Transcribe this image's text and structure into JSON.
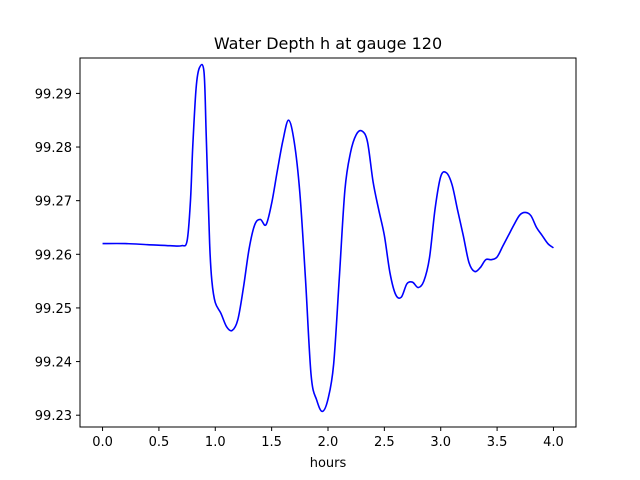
{
  "chart_data": {
    "type": "line",
    "title": "Water Depth h at gauge 120",
    "xlabel": "hours",
    "ylabel": "",
    "xlim": [
      -0.2,
      4.2
    ],
    "ylim": [
      99.2278,
      99.2966
    ],
    "xticks": [
      0.0,
      0.5,
      1.0,
      1.5,
      2.0,
      2.5,
      3.0,
      3.5,
      4.0
    ],
    "xtick_labels": [
      "0.0",
      "0.5",
      "1.0",
      "1.5",
      "2.0",
      "2.5",
      "3.0",
      "3.5",
      "4.0"
    ],
    "yticks": [
      99.23,
      99.24,
      99.25,
      99.26,
      99.27,
      99.28,
      99.29
    ],
    "ytick_labels": [
      "99.23",
      "99.24",
      "99.25",
      "99.26",
      "99.27",
      "99.28",
      "99.29"
    ],
    "grid": false,
    "series": [
      {
        "color": "#0000ff",
        "x": [
          0.0,
          0.2,
          0.4,
          0.6,
          0.7,
          0.75,
          0.78,
          0.8,
          0.83,
          0.86,
          0.9,
          0.92,
          0.95,
          0.97,
          1.0,
          1.05,
          1.1,
          1.15,
          1.2,
          1.25,
          1.3,
          1.35,
          1.4,
          1.45,
          1.5,
          1.55,
          1.6,
          1.65,
          1.7,
          1.75,
          1.8,
          1.85,
          1.9,
          1.95,
          2.0,
          2.05,
          2.1,
          2.15,
          2.2,
          2.25,
          2.3,
          2.35,
          2.4,
          2.45,
          2.5,
          2.55,
          2.6,
          2.65,
          2.7,
          2.75,
          2.8,
          2.85,
          2.9,
          2.95,
          3.0,
          3.05,
          3.1,
          3.15,
          3.2,
          3.25,
          3.3,
          3.35,
          3.4,
          3.45,
          3.5,
          3.55,
          3.6,
          3.65,
          3.7,
          3.75,
          3.8,
          3.85,
          3.9,
          3.95,
          4.0
        ],
        "y": [
          99.262,
          99.262,
          99.2618,
          99.2616,
          99.2616,
          99.2625,
          99.27,
          99.28,
          99.291,
          99.2948,
          99.294,
          99.282,
          99.262,
          99.255,
          99.251,
          99.249,
          99.2465,
          99.2458,
          99.2478,
          99.2538,
          99.261,
          99.2655,
          99.2665,
          99.2655,
          99.2695,
          99.2755,
          99.2812,
          99.285,
          99.281,
          99.2715,
          99.2555,
          99.2375,
          99.2328,
          99.2307,
          99.233,
          99.2395,
          99.2555,
          99.272,
          99.279,
          99.2823,
          99.283,
          99.281,
          99.2735,
          99.2683,
          99.2635,
          99.2565,
          99.2525,
          99.252,
          99.2545,
          99.2548,
          99.2538,
          99.255,
          99.2593,
          99.2685,
          99.2745,
          99.2752,
          99.273,
          99.2682,
          99.2635,
          99.2585,
          99.2568,
          99.2575,
          99.259,
          99.259,
          99.2595,
          99.2615,
          99.2635,
          99.2655,
          99.2673,
          99.2678,
          99.2672,
          99.265,
          99.2635,
          99.262,
          99.2612
        ]
      }
    ]
  }
}
